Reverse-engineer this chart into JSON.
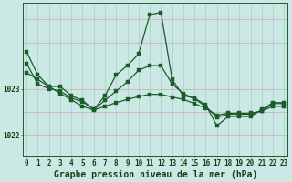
{
  "title": "Graphe pression niveau de la mer (hPa)",
  "x_ticks": [
    0,
    1,
    2,
    3,
    4,
    5,
    6,
    7,
    8,
    9,
    10,
    11,
    12,
    13,
    14,
    15,
    16,
    17,
    18,
    19,
    20,
    21,
    22,
    23
  ],
  "y_ticks": [
    1022,
    1023
  ],
  "ylim": [
    1021.55,
    1024.85
  ],
  "xlim": [
    -0.3,
    23.3
  ],
  "background_color": "#cce8e4",
  "grid_color": "#aaccc8",
  "line_color": "#1a5c2a",
  "marker_color": "#1a5c2a",
  "axis_label_color": "#1a3a1a",
  "tick_label_color": "#1a3a1a",
  "series_main": [
    1023.8,
    1023.3,
    1023.05,
    1023.05,
    1022.85,
    1022.75,
    1022.55,
    1022.85,
    1023.3,
    1023.5,
    1023.75,
    1024.6,
    1024.65,
    1023.2,
    1022.85,
    1022.8,
    1022.65,
    1022.2,
    1022.4,
    1022.4,
    1022.4,
    1022.55,
    1022.7,
    1022.7
  ],
  "series_mid": [
    1023.55,
    1023.1,
    1023.0,
    1022.95,
    1022.8,
    1022.72,
    1022.55,
    1022.75,
    1022.95,
    1023.15,
    1023.4,
    1023.5,
    1023.5,
    1023.1,
    1022.9,
    1022.78,
    1022.62,
    1022.38,
    1022.45,
    1022.45,
    1022.45,
    1022.52,
    1022.68,
    1022.68
  ],
  "series_trend": [
    1023.35,
    1023.2,
    1023.05,
    1022.9,
    1022.76,
    1022.62,
    1022.54,
    1022.62,
    1022.7,
    1022.77,
    1022.83,
    1022.88,
    1022.88,
    1022.82,
    1022.77,
    1022.68,
    1022.58,
    1022.43,
    1022.47,
    1022.47,
    1022.47,
    1022.52,
    1022.62,
    1022.62
  ],
  "line_width": 0.9,
  "marker_size": 2.2,
  "tick_fontsize": 5.5,
  "xlabel_fontsize": 7.0
}
